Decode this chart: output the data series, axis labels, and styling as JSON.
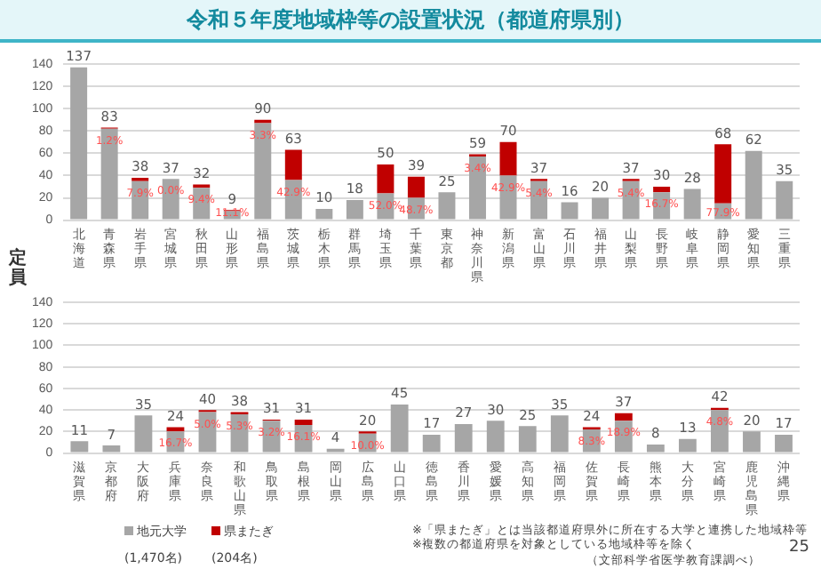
{
  "chart_data": [
    {
      "type": "bar",
      "title": "令和５年度地域枠等の設置状況（都道府県別）",
      "ylabel": "定員",
      "stacked": true,
      "grid": "y",
      "categories": [
        "北海道",
        "青森県",
        "岩手県",
        "宮城県",
        "秋田県",
        "山形県",
        "福島県",
        "茨城県",
        "栃木県",
        "群馬県",
        "埼玉県",
        "千葉県",
        "東京都",
        "神奈川県",
        "新潟県",
        "富山県",
        "石川県",
        "福井県",
        "山梨県",
        "長野県",
        "岐阜県",
        "静岡県",
        "愛知県",
        "三重県"
      ],
      "series": [
        {
          "color": "#a6a6a6",
          "values": [
            137,
            82,
            35,
            37,
            29,
            8,
            87,
            36,
            10,
            18,
            24,
            20,
            25,
            57,
            40,
            35,
            16,
            20,
            35,
            25,
            28,
            15,
            62,
            35
          ]
        },
        {
          "color": "#c00000",
          "values": [
            0,
            1,
            3,
            0,
            3,
            1,
            3,
            27,
            0,
            0,
            26,
            19,
            0,
            2,
            30,
            2,
            0,
            0,
            2,
            5,
            0,
            53,
            0,
            0
          ]
        }
      ],
      "totals": [
        "137",
        "83",
        "38",
        "37",
        "32",
        "9",
        "90",
        "63",
        "10",
        "18",
        "50",
        "39",
        "25",
        "59",
        "70",
        "37",
        "16",
        "20",
        "37",
        "30",
        "28",
        "68",
        "62",
        "35"
      ],
      "ylim": [
        0,
        140
      ],
      "yticks": [
        0,
        20,
        40,
        60,
        80,
        100,
        120,
        140
      ],
      "annotations": [
        {
          "text": "1.2%",
          "x": "青森県",
          "y": 82
        },
        {
          "text": "7.9%",
          "x": "岩手県",
          "y": 35
        },
        {
          "text": "0.0%",
          "x": "宮城県",
          "y": 37
        },
        {
          "text": "9.4%",
          "x": "秋田県",
          "y": 29
        },
        {
          "text": "11.1%",
          "x": "山形県",
          "y": 8
        },
        {
          "text": "3.3%",
          "x": "福島県",
          "y": 87
        },
        {
          "text": "42.9%",
          "x": "茨城県",
          "y": 36
        },
        {
          "text": "52.0%",
          "x": "埼玉県",
          "y": 24
        },
        {
          "text": "48.7%",
          "x": "千葉県",
          "y": 20
        },
        {
          "text": "3.4%",
          "x": "神奈川県",
          "y": 57
        },
        {
          "text": "42.9%",
          "x": "新潟県",
          "y": 40
        },
        {
          "text": "5.4%",
          "x": "富山県",
          "y": 35
        },
        {
          "text": "5.4%",
          "x": "山梨県",
          "y": 35
        },
        {
          "text": "16.7%",
          "x": "長野県",
          "y": 25
        },
        {
          "text": "77.9%",
          "x": "静岡県",
          "y": 15
        }
      ]
    },
    {
      "type": "bar",
      "stacked": true,
      "grid": "y",
      "legend": "bottom",
      "categories": [
        "滋賀県",
        "京都府",
        "大阪府",
        "兵庫県",
        "奈良県",
        "和歌山県",
        "鳥取県",
        "島根県",
        "岡山県",
        "広島県",
        "山口県",
        "徳島県",
        "香川県",
        "愛媛県",
        "高知県",
        "福岡県",
        "佐賀県",
        "長崎県",
        "熊本県",
        "大分県",
        "宮崎県",
        "鹿児島県",
        "沖縄県"
      ],
      "series": [
        {
          "name": "地元大学",
          "color": "#a6a6a6",
          "values": [
            11,
            7,
            35,
            20,
            38,
            36,
            30,
            26,
            4,
            18,
            45,
            17,
            27,
            30,
            25,
            35,
            22,
            30,
            8,
            13,
            40,
            20,
            17
          ]
        },
        {
          "name": "県またぎ",
          "color": "#c00000",
          "values": [
            0,
            0,
            0,
            4,
            2,
            2,
            1,
            5,
            0,
            2,
            0,
            0,
            0,
            0,
            0,
            0,
            2,
            7,
            0,
            0,
            2,
            0,
            0
          ]
        }
      ],
      "totals": [
        "11",
        "7",
        "35",
        "24",
        "40",
        "38",
        "31",
        "31",
        "4",
        "20",
        "45",
        "17",
        "27",
        "30",
        "25",
        "35",
        "24",
        "37",
        "8",
        "13",
        "42",
        "20",
        "17"
      ],
      "ylim": [
        0,
        140
      ],
      "yticks": [
        0,
        20,
        40,
        60,
        80,
        100,
        120,
        140
      ],
      "annotations": [
        "(1,470名)",
        "(204名)",
        "※「県またぎ」とは当該都道府県外に所在する大学と連携した地域枠等",
        "※複数の都道府県を対象としている地域枠等を除く",
        "（文部科学省医学教育課調べ）",
        "25",
        {
          "text": "16.7%",
          "x": "兵庫県",
          "y": 20
        },
        {
          "text": "5.0%",
          "x": "奈良県",
          "y": 38
        },
        {
          "text": "5.3%",
          "x": "和歌山県",
          "y": 36
        },
        {
          "text": "3.2%",
          "x": "鳥取県",
          "y": 30
        },
        {
          "text": "16.1%",
          "x": "島根県",
          "y": 26
        },
        {
          "text": "10.0%",
          "x": "広島県",
          "y": 18
        },
        {
          "text": "8.3%",
          "x": "佐賀県",
          "y": 22
        },
        {
          "text": "18.9%",
          "x": "長崎県",
          "y": 30
        },
        {
          "text": "4.8%",
          "x": "宮崎県",
          "y": 40
        }
      ]
    }
  ]
}
